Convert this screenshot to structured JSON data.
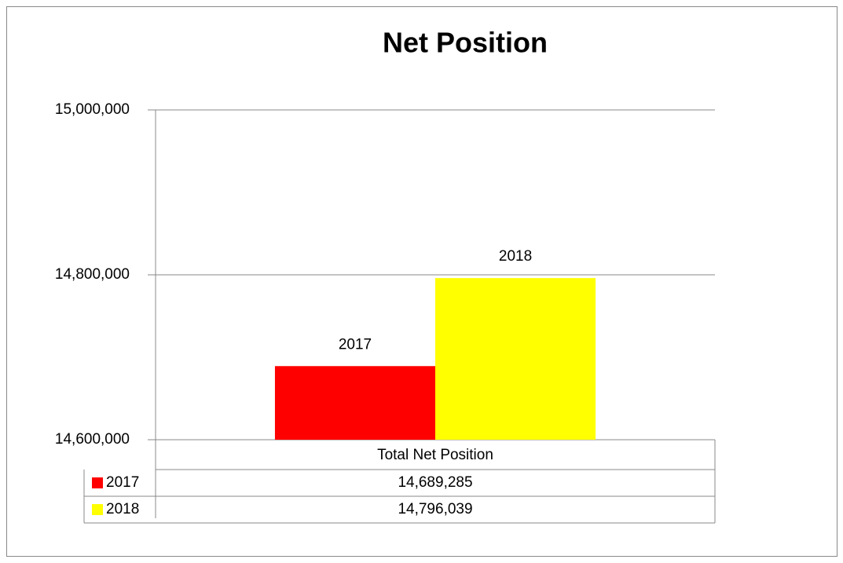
{
  "chart_data": {
    "type": "bar",
    "title": "Net Position",
    "categories": [
      "Total Net Position"
    ],
    "series": [
      {
        "name": "2017",
        "color": "#ff0000",
        "values": [
          14689285
        ],
        "value_labels": [
          "14,689,285"
        ]
      },
      {
        "name": "2018",
        "color": "#ffff00",
        "values": [
          14796039
        ],
        "value_labels": [
          "14,796,039"
        ]
      }
    ],
    "ylim": [
      14600000,
      15000000
    ],
    "yticks": [
      {
        "value": 14600000,
        "label": "14,600,000"
      },
      {
        "value": 14800000,
        "label": "14,800,000"
      },
      {
        "value": 15000000,
        "label": "15,000,000"
      }
    ],
    "grid": true
  }
}
